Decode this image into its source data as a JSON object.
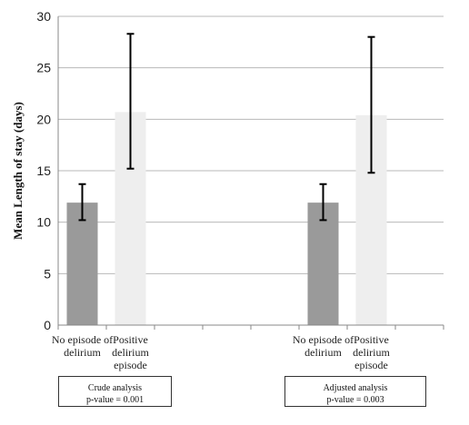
{
  "chart_data": {
    "type": "bar",
    "ylabel": "Mean Length of stay (days)",
    "ylim": [
      0,
      30
    ],
    "yticks": [
      0,
      5,
      10,
      15,
      20,
      25,
      30
    ],
    "grid": true,
    "groups": [
      {
        "bars": [
          {
            "label": [
              "No episode of",
              "delirium"
            ],
            "value": 11.9,
            "err_low": 10.2,
            "err_high": 13.7,
            "color": "#9a9a9a"
          },
          {
            "label": [
              "Positive",
              "delirium",
              "episode"
            ],
            "value": 20.7,
            "err_low": 15.2,
            "err_high": 28.3,
            "color": "#eeeeee"
          }
        ],
        "note": [
          "Crude analysis",
          "p-value = 0.001"
        ]
      },
      {
        "bars": [
          {
            "label": [
              "No episode of",
              "delirium"
            ],
            "value": 11.9,
            "err_low": 10.2,
            "err_high": 13.7,
            "color": "#9a9a9a"
          },
          {
            "label": [
              "Positive",
              "delirium",
              "episode"
            ],
            "value": 20.4,
            "err_low": 14.8,
            "err_high": 28.0,
            "color": "#eeeeee"
          }
        ],
        "note": [
          "Adjusted analysis",
          "p-value = 0.003"
        ]
      }
    ]
  }
}
